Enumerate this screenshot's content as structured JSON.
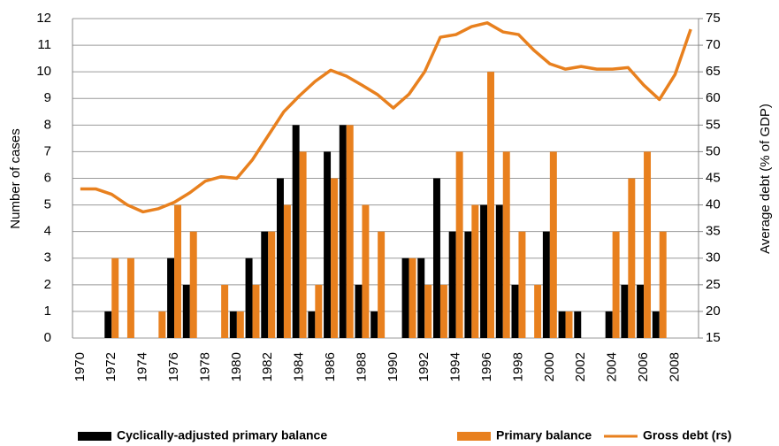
{
  "chart_data": {
    "type": "bar",
    "y_label": "Number of cases",
    "y2_label": "Average debt (% of GDP)",
    "categories": [
      "1970",
      null,
      "1972",
      null,
      "1974",
      null,
      "1976",
      null,
      "1978",
      null,
      "1980",
      null,
      "1982",
      null,
      "1984",
      null,
      "1986",
      null,
      "1988",
      null,
      "1990",
      null,
      "1992",
      null,
      "1994",
      null,
      "1996",
      null,
      "1998",
      null,
      "2000",
      null,
      "2002",
      null,
      "2004",
      null,
      "2006",
      null,
      "2008",
      null
    ],
    "series": [
      {
        "name": "Cyclically-adjusted primary balance",
        "color": "#000000",
        "type": "bar",
        "values": [
          0,
          0,
          1,
          0,
          0,
          0,
          3,
          2,
          0,
          0,
          1,
          3,
          4,
          6,
          8,
          1,
          7,
          8,
          2,
          1,
          0,
          3,
          3,
          6,
          4,
          4,
          5,
          5,
          2,
          0,
          4,
          1,
          1,
          0,
          1,
          2,
          2,
          1,
          0,
          0
        ]
      },
      {
        "name": "Primary balance",
        "color": "#e8801e",
        "type": "bar",
        "values": [
          0,
          0,
          3,
          3,
          0,
          1,
          5,
          4,
          0,
          2,
          1,
          2,
          4,
          5,
          7,
          2,
          6,
          8,
          5,
          4,
          0,
          3,
          2,
          2,
          7,
          5,
          10,
          7,
          4,
          2,
          7,
          1,
          0,
          0,
          4,
          6,
          7,
          4,
          0,
          0
        ]
      },
      {
        "name": "Gross debt (rs)",
        "color": "#e8801e",
        "type": "line",
        "axis": "y2",
        "values": [
          43,
          43,
          42,
          40,
          38.7,
          39.3,
          40.5,
          42.3,
          44.5,
          45.3,
          45,
          48.5,
          53,
          57.5,
          60.5,
          63.2,
          65.3,
          64.2,
          62.5,
          60.7,
          58.2,
          60.8,
          65,
          71.5,
          72,
          73.5,
          74.2,
          72.5,
          72,
          69,
          66.5,
          65.5,
          66,
          65.5,
          65.5,
          65.8,
          62.5,
          59.8,
          64.5,
          73
        ]
      }
    ],
    "ylim": [
      0,
      12
    ],
    "yticks": [
      0,
      1,
      2,
      3,
      4,
      5,
      6,
      7,
      8,
      9,
      10,
      11,
      12
    ],
    "y2lim": [
      15,
      75
    ],
    "y2ticks": [
      15,
      20,
      25,
      30,
      35,
      40,
      45,
      50,
      55,
      60,
      65,
      70,
      75
    ],
    "grid": true,
    "legend": "bottom"
  }
}
